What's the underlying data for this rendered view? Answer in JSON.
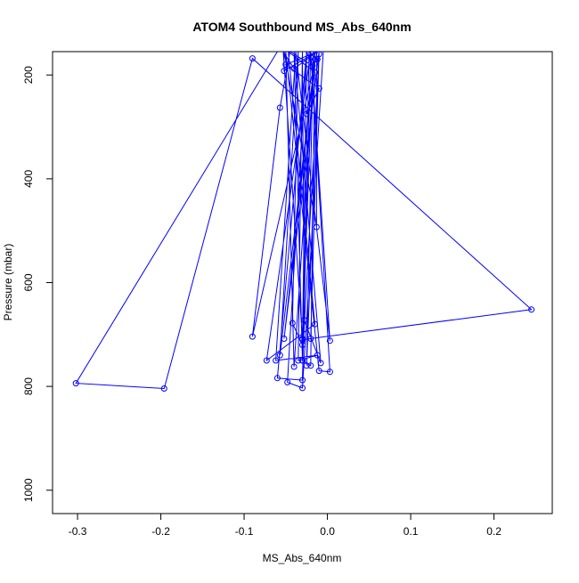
{
  "chart_data": {
    "type": "line",
    "title": "ATOM4 Southbound MS_Abs_640nm",
    "xlabel": "MS_Abs_640nm",
    "ylabel": "Pressure (mbar)",
    "xlim": [
      -0.33,
      0.27
    ],
    "ylim": [
      1045,
      155
    ],
    "y_inverted": true,
    "xticks": [
      -0.3,
      -0.2,
      -0.1,
      0.0,
      0.1,
      0.2
    ],
    "xtick_labels": [
      "-0.3",
      "-0.2",
      "-0.1",
      "0.0",
      "0.1",
      "0.2"
    ],
    "yticks": [
      200,
      400,
      600,
      800,
      1000
    ],
    "ytick_labels": [
      "200",
      "400",
      "600",
      "800",
      "1000"
    ],
    "grid": false,
    "series": [
      {
        "color": "#0000ff",
        "marker": "open-circle",
        "points": [
          [
            -0.06,
            155
          ],
          [
            -0.302,
            794
          ],
          [
            -0.196,
            804
          ],
          [
            -0.09,
            168
          ],
          [
            0.245,
            652
          ],
          [
            -0.03,
            710
          ],
          [
            -0.02,
            708
          ],
          [
            -0.01,
            155
          ],
          [
            -0.052,
            708
          ],
          [
            -0.015,
            170
          ],
          [
            -0.057,
            740
          ],
          [
            -0.035,
            155
          ],
          [
            -0.042,
            678
          ],
          [
            -0.03,
            720
          ],
          [
            -0.025,
            155
          ],
          [
            -0.018,
            182
          ],
          [
            -0.045,
            155
          ],
          [
            -0.057,
            263
          ],
          [
            -0.09,
            704
          ],
          [
            -0.012,
            155
          ],
          [
            -0.05,
            180
          ],
          [
            -0.01,
            226
          ],
          [
            -0.025,
            275
          ],
          [
            -0.015,
            195
          ],
          [
            -0.047,
            155
          ],
          [
            -0.015,
            680
          ],
          [
            -0.073,
            750
          ],
          [
            -0.02,
            155
          ],
          [
            0.003,
            712
          ],
          [
            -0.038,
            155
          ],
          [
            -0.062,
            750
          ],
          [
            -0.012,
            740
          ],
          [
            -0.035,
            750
          ],
          [
            -0.03,
            155
          ],
          [
            -0.028,
            672
          ],
          [
            -0.008,
            755
          ],
          [
            -0.04,
            155
          ],
          [
            -0.03,
            750
          ],
          [
            -0.02,
            760
          ],
          [
            -0.015,
            155
          ],
          [
            -0.04,
            762
          ],
          [
            -0.05,
            155
          ],
          [
            -0.01,
            770
          ],
          [
            0.003,
            772
          ],
          [
            -0.02,
            155
          ],
          [
            -0.03,
            788
          ],
          [
            -0.06,
            784
          ],
          [
            -0.025,
            155
          ],
          [
            -0.048,
            792
          ],
          [
            -0.03,
            803
          ],
          [
            -0.005,
            155
          ],
          [
            -0.013,
            155
          ],
          [
            -0.013,
            493
          ],
          [
            -0.052,
            155
          ],
          [
            -0.052,
            192
          ],
          [
            -0.012,
            155
          ],
          [
            -0.04,
            188
          ],
          [
            -0.053,
            155
          ],
          [
            -0.03,
            708
          ],
          [
            -0.017,
            155
          ],
          [
            -0.025,
            760
          ],
          [
            -0.01,
            160
          ],
          [
            -0.03,
            750
          ],
          [
            -0.022,
            155
          ],
          [
            -0.012,
            170
          ]
        ]
      }
    ]
  }
}
